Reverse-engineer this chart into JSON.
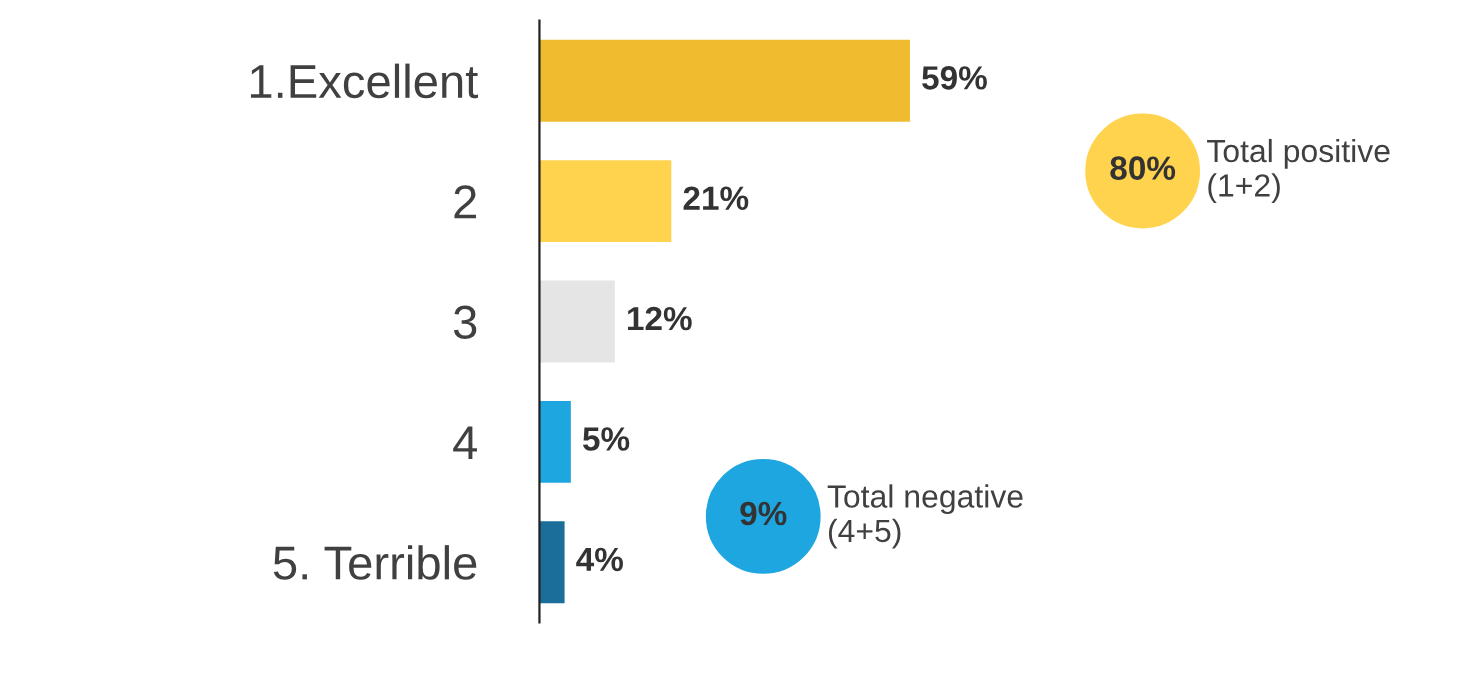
{
  "chart_data": {
    "type": "bar",
    "orientation": "horizontal",
    "categories": [
      "1.Excellent",
      "2",
      "3",
      "4",
      "5. Terrible"
    ],
    "values": [
      59,
      21,
      12,
      5,
      4
    ],
    "colors": [
      "#f0bb2e",
      "#ffd34d",
      "#e5e5e5",
      "#1ea6e0",
      "#1a6e99"
    ],
    "value_labels": [
      "59%",
      "21%",
      "12%",
      "5%",
      "4%"
    ],
    "annotations": [
      "80%",
      "Total positive\n(1+2)",
      "9%",
      "Total negative\n(4+5)"
    ],
    "grid": false,
    "legend": false
  }
}
